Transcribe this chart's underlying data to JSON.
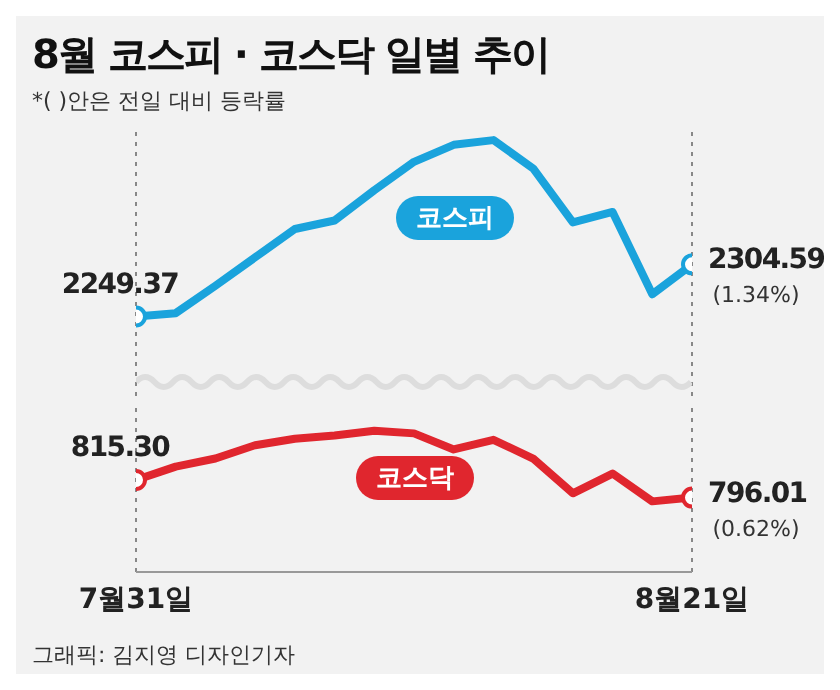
{
  "chart_data": [
    {
      "type": "line",
      "title": "8월 코스피 · 코스닥 일별 추이",
      "subtitle": "*( )안은 전일 대비 등락률",
      "categories": [
        "7월31일",
        null,
        null,
        null,
        null,
        null,
        null,
        null,
        null,
        null,
        null,
        null,
        null,
        null,
        "8월21일"
      ],
      "tick_labels": false,
      "series": [
        {
          "name": "코스피",
          "color": "#1aa3dc",
          "values": [
            2249.37,
            2253,
            2282,
            2312,
            2342,
            2351,
            2383,
            2413,
            2431,
            2436,
            2406,
            2349,
            2360,
            2273,
            2304.59
          ],
          "value_labels": [
            "2249.37",
            null,
            null,
            null,
            null,
            null,
            null,
            null,
            null,
            null,
            null,
            null,
            null,
            null,
            "2304.59"
          ]
        }
      ],
      "ref_lines": [
        {
          "axis": "x",
          "value": "7월31일",
          "line_style": "dotted",
          "color": "#888888"
        },
        {
          "axis": "x",
          "value": "8월21일",
          "line_style": "dotted",
          "color": "#888888"
        }
      ],
      "annotations": [
        {
          "text": "(1.34%)",
          "x": "8월21일",
          "y": 2304.59
        }
      ]
    },
    {
      "type": "line",
      "categories": [
        "7월31일",
        null,
        null,
        null,
        null,
        null,
        null,
        null,
        null,
        null,
        null,
        null,
        null,
        null,
        "8월21일"
      ],
      "tick_labels": "x",
      "series": [
        {
          "name": "코스닥",
          "color": "#e0262e",
          "values": [
            815.3,
            829.9,
            838.7,
            853.3,
            860.3,
            863.9,
            869.1,
            866.2,
            848.6,
            859.2,
            838.7,
            800.7,
            822.3,
            791.9,
            796.01
          ],
          "value_labels": [
            "815.30",
            null,
            null,
            null,
            null,
            null,
            null,
            null,
            null,
            null,
            null,
            null,
            null,
            null,
            "796.01"
          ]
        }
      ],
      "ref_lines": [
        {
          "axis": "x",
          "value": "7월31일",
          "line_style": "dotted",
          "color": "#888888"
        },
        {
          "axis": "x",
          "value": "8월21일",
          "line_style": "dotted",
          "color": "#888888"
        }
      ],
      "annotations": [
        {
          "text": "(0.62%)",
          "x": "8월21일",
          "y": 796.01
        },
        "그래픽: 김지영 디자인기자"
      ]
    }
  ]
}
